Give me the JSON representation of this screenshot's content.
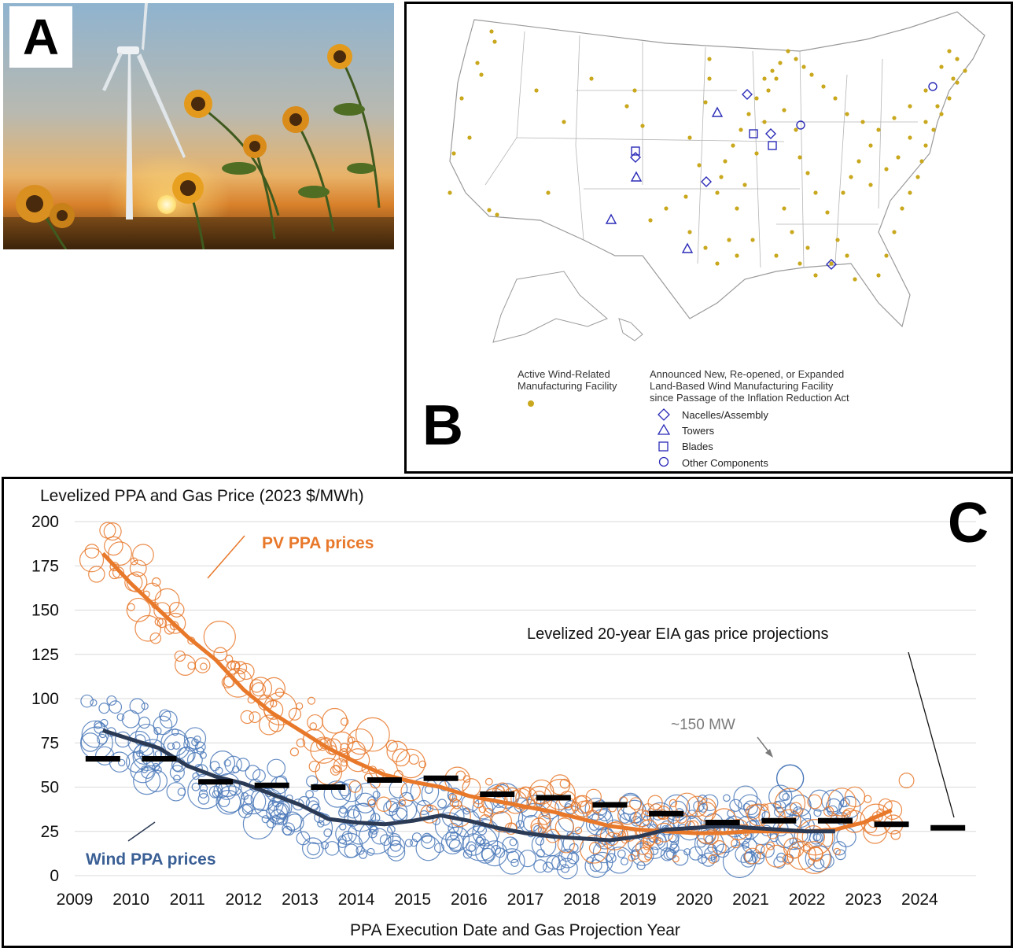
{
  "panels": {
    "a": {
      "letter": "A"
    },
    "b": {
      "letter": "B",
      "legend": {
        "active_label": "Active Wind-Related\nManufacturing Facility",
        "announced_label": "Announced New, Re-opened, or Expanded\nLand-Based Wind Manufacturing Facility\nsince Passage of the Inflation Reduction Act",
        "items": [
          {
            "label": "Nacelles/Assembly",
            "symbol": "diamond"
          },
          {
            "label": "Towers",
            "symbol": "triangle"
          },
          {
            "label": "Blades",
            "symbol": "square"
          },
          {
            "label": "Other Components",
            "symbol": "circle"
          }
        ]
      },
      "colors": {
        "active": "#c9a81d",
        "announced": "#2b2bb8",
        "border": "#9a9a9a"
      }
    },
    "c": {
      "letter": "C"
    }
  },
  "chart_data": {
    "type": "scatter",
    "title": "Levelized PPA and Gas Price (2023 $/MWh)",
    "xlabel": "PPA Execution Date and Gas Projection Year",
    "ylabel": "",
    "ylim": [
      0,
      200
    ],
    "yticks": [
      0,
      25,
      50,
      75,
      100,
      125,
      150,
      175,
      200
    ],
    "xlim": [
      2009,
      2025
    ],
    "xticks": [
      "2009",
      "2010",
      "2011",
      "2012",
      "2013",
      "2014",
      "2015",
      "2016",
      "2017",
      "2018",
      "2019",
      "2020",
      "2021",
      "2022",
      "2023",
      "2024"
    ],
    "grid": true,
    "annotations": {
      "pv": "PV PPA prices",
      "wind": "Wind PPA prices",
      "gas": "Levelized 20-year EIA gas price projections",
      "size_ref": "~150 MW"
    },
    "colors": {
      "pv": "#e8782a",
      "wind": "#4a78b8",
      "wind_trend": "#2b3a55",
      "gas": "#000000",
      "size_ref": "#7a7a7a"
    },
    "series": [
      {
        "name": "PV PPA prices",
        "type": "line",
        "x": [
          2009.5,
          2010.0,
          2010.5,
          2011.0,
          2011.5,
          2012.0,
          2012.5,
          2013.0,
          2013.5,
          2014.0,
          2014.5,
          2015.0,
          2015.5,
          2016.0,
          2016.5,
          2017.0,
          2017.5,
          2018.0,
          2018.5,
          2019.0,
          2019.5,
          2020.0,
          2020.5,
          2021.0,
          2021.5,
          2022.0,
          2022.5,
          2023.0,
          2023.5
        ],
        "values": [
          182,
          165,
          150,
          135,
          122,
          105,
          92,
          82,
          72,
          64,
          57,
          53,
          50,
          45,
          42,
          39,
          36,
          32,
          28,
          26,
          25,
          24,
          24,
          25,
          25,
          25,
          26,
          30,
          37
        ]
      },
      {
        "name": "Wind PPA prices",
        "type": "line",
        "x": [
          2009.5,
          2010.0,
          2010.5,
          2011.0,
          2011.5,
          2012.0,
          2012.5,
          2013.0,
          2013.5,
          2014.0,
          2014.5,
          2015.0,
          2015.5,
          2016.0,
          2016.5,
          2017.0,
          2017.5,
          2018.0,
          2018.5,
          2019.0,
          2019.5,
          2020.0,
          2020.5,
          2021.0,
          2021.5,
          2022.0,
          2022.5
        ],
        "values": [
          82,
          77,
          72,
          62,
          56,
          52,
          46,
          40,
          32,
          30,
          29,
          31,
          34,
          31,
          27,
          24,
          22,
          21,
          20,
          22,
          26,
          27,
          28,
          27,
          26,
          25,
          25
        ]
      },
      {
        "name": "Levelized 20-year EIA gas price projections",
        "type": "segments",
        "x": [
          2009.5,
          2010.5,
          2011.5,
          2012.5,
          2013.5,
          2014.5,
          2015.5,
          2016.5,
          2017.5,
          2018.5,
          2019.5,
          2020.5,
          2021.5,
          2022.5,
          2023.5,
          2024.5
        ],
        "values": [
          66,
          66,
          53,
          51,
          50,
          54,
          55,
          46,
          44,
          40,
          35,
          30,
          31,
          31,
          29,
          27
        ]
      }
    ]
  }
}
